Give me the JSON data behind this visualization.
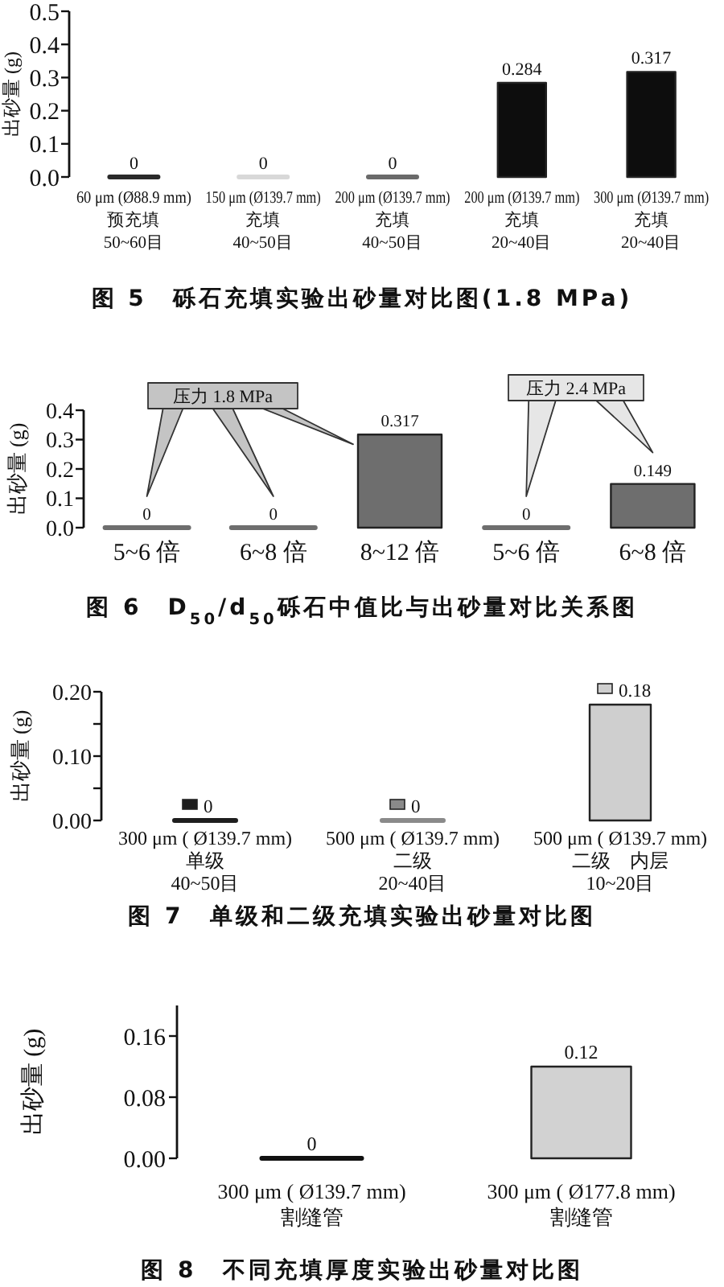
{
  "chart_data": [
    {
      "type": "bar",
      "title": "图 5　砾石充填实验出砂量对比图(1.8 MPa)",
      "ylabel": "出砂量 (g)",
      "categories": [
        "60 μm (Ø88.9 mm)\n预充填\n50~60目",
        "150 μm (Ø139.7 mm)\n充填\n40~50目",
        "200 μm (Ø139.7 mm)\n充填\n40~50目",
        "200 μm (Ø139.7 mm)\n充填\n20~40目",
        "300 μm (Ø139.7 mm)\n充填\n20~40目"
      ],
      "values": [
        0,
        0,
        0,
        0.284,
        0.317
      ],
      "colors": [
        "#2a2a2a",
        "#d8d8d8",
        "#6a6a6a",
        "#0d0d0d",
        "#0d0d0d"
      ],
      "ylim": [
        0,
        0.5
      ],
      "yticks": [
        {
          "value": 0,
          "label": "0.0"
        },
        0.1,
        0.2,
        0.3,
        0.4,
        0.5
      ],
      "data_labels": true
    },
    {
      "type": "bar",
      "title": "图 6　D$_{50}$/d$_{50}$砾石中值比与出砂量对比关系图",
      "ylabel": "出砂量 (g)",
      "categories": [
        "5~6 倍",
        "6~8 倍",
        "8~12 倍",
        "5~6 倍",
        "6~8 倍"
      ],
      "values": [
        0,
        0,
        0.317,
        0,
        0.149
      ],
      "color": "#6e6e6e",
      "ylim": [
        0,
        0.4
      ],
      "yticks": [
        {
          "value": 0,
          "label": "0.0"
        },
        0.1,
        0.2,
        0.3,
        0.4
      ],
      "data_labels": true,
      "annotations": [
        "压力 1.8 MPa",
        "压力 2.4 MPa"
      ]
    },
    {
      "type": "bar",
      "title": "图 7　单级和二级充填实验出砂量对比图",
      "ylabel": "出砂量 (g)",
      "categories": [
        "300 μm ( Ø139.7 mm)\n单级\n40~50目",
        "500 μm ( Ø139.7 mm)\n二级\n20~40目",
        "500 μm ( Ø139.7 mm)\n二级　内层\n10~20目"
      ],
      "values": [
        0,
        0,
        0.18
      ],
      "colors": [
        "#1e1e1e",
        "#8a8a8a",
        "#cfcfcf"
      ],
      "ylim": [
        0,
        0.2
      ],
      "yticks": [
        {
          "value": 0,
          "label": "0.00"
        },
        {
          "value": 0.05,
          "label": null
        },
        {
          "value": 0.1,
          "label": "0.10"
        },
        {
          "value": 0.15,
          "label": null
        },
        {
          "value": 0.2,
          "label": "0.20"
        }
      ],
      "data_labels": true
    },
    {
      "type": "bar",
      "title": "图 8　不同充填厚度实验出砂量对比图",
      "ylabel": "出砂量 (g)",
      "categories": [
        "300 μm ( Ø139.7 mm)\n割缝管",
        "300 μm ( Ø177.8 mm)\n割缝管"
      ],
      "values": [
        0,
        0.12
      ],
      "colors": [
        "#111111",
        "#d2d2d2"
      ],
      "ylim": [
        0,
        0.2
      ],
      "yticks": [
        {
          "value": 0,
          "label": "0.00"
        },
        0.08,
        0.16
      ],
      "data_labels": true
    }
  ]
}
